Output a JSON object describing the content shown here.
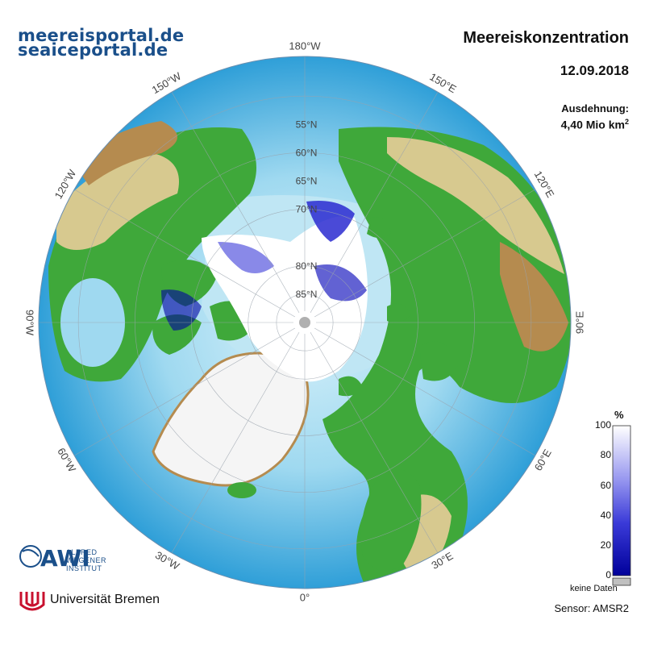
{
  "header": {
    "portal_de": "meereisportal.de",
    "portal_en": "seaiceportal.de",
    "title": "Meereiskonzentration",
    "date": "12.09.2018",
    "extent_label": "Ausdehnung:",
    "extent_value": "4,40 Mio km",
    "extent_exponent": "2"
  },
  "map": {
    "longitude_labels": [
      "180°W",
      "150°W",
      "120°W",
      "90°W",
      "60°W",
      "30°W",
      "0°",
      "30°E",
      "60°E",
      "90°E",
      "120°E",
      "150°E"
    ],
    "latitude_labels": [
      "55°N",
      "60°N",
      "65°N",
      "70°N",
      "80°N",
      "85°N"
    ],
    "colors": {
      "ocean_deep": "#2f9fd8",
      "ocean_shallow": "#bfe6f4",
      "land_low": "#3fa83a",
      "land_mid": "#d7c98f",
      "land_high": "#b58b4f",
      "ice_sheet": "#f5f5f5",
      "sea_ice_high": "#ffffff",
      "sea_ice_low": "#0000a0",
      "no_data": "#c0c0c0"
    }
  },
  "colorbar": {
    "unit": "%",
    "ticks": [
      "100",
      "80",
      "60",
      "40",
      "20",
      "0"
    ],
    "no_data_label": "keine Daten"
  },
  "footer": {
    "sensor": "Sensor: AMSR2",
    "awi_name": [
      "ALFRED",
      "WEGENER",
      "INSTITUT"
    ],
    "awi_logo_text": "AWI",
    "university": "Universität Bremen"
  }
}
